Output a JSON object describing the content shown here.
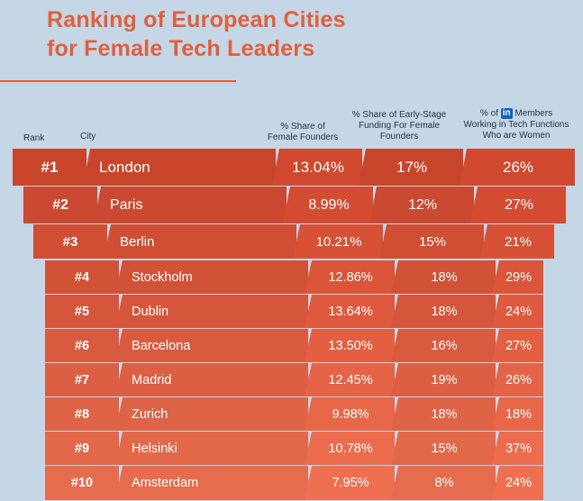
{
  "title_line1": "Ranking of European Cities",
  "title_line2": "for Female Tech Leaders",
  "headers": {
    "rank": "Rank",
    "city": "City",
    "founders_l1": "% Share of",
    "founders_l2": "Female Founders",
    "funding_l1": "% Share of Early-Stage",
    "funding_l2": "Funding For Female",
    "funding_l3": "Founders",
    "members_pre": "% of",
    "members_badge": "in",
    "members_post": "Members",
    "members_l2": "Working in Tech Functions",
    "members_l3": "Who are Women"
  },
  "colors": {
    "accent": "#e0603d",
    "background": "#c5d6e6",
    "row_top": "#c8452c",
    "row_bottom": "#e66c4e",
    "linkedin": "#0a66c2"
  },
  "chart_data": {
    "type": "table",
    "columns": [
      "Rank",
      "City",
      "% Share of Female Founders",
      "% Share of Early-Stage Funding For Female Founders",
      "% of LinkedIn Members Working in Tech Functions Who are Women"
    ],
    "rows": [
      {
        "rank": "#1",
        "city": "London",
        "founders": "13.04%",
        "funding": "17%",
        "members": "26%"
      },
      {
        "rank": "#2",
        "city": "Paris",
        "founders": "8.99%",
        "funding": "12%",
        "members": "27%"
      },
      {
        "rank": "#3",
        "city": "Berlin",
        "founders": "10.21%",
        "funding": "15%",
        "members": "21%"
      },
      {
        "rank": "#4",
        "city": "Stockholm",
        "founders": "12.86%",
        "funding": "18%",
        "members": "29%"
      },
      {
        "rank": "#5",
        "city": "Dublin",
        "founders": "13.64%",
        "funding": "18%",
        "members": "24%"
      },
      {
        "rank": "#6",
        "city": "Barcelona",
        "founders": "13.50%",
        "funding": "16%",
        "members": "27%"
      },
      {
        "rank": "#7",
        "city": "Madrid",
        "founders": "12.45%",
        "funding": "19%",
        "members": "26%"
      },
      {
        "rank": "#8",
        "city": "Zurich",
        "founders": "9.98%",
        "funding": "18%",
        "members": "18%"
      },
      {
        "rank": "#9",
        "city": "Helsinki",
        "founders": "10.78%",
        "funding": "15%",
        "members": "37%"
      },
      {
        "rank": "#10",
        "city": "Amsterdam",
        "founders": "7.95%",
        "funding": "8%",
        "members": "24%"
      }
    ]
  }
}
